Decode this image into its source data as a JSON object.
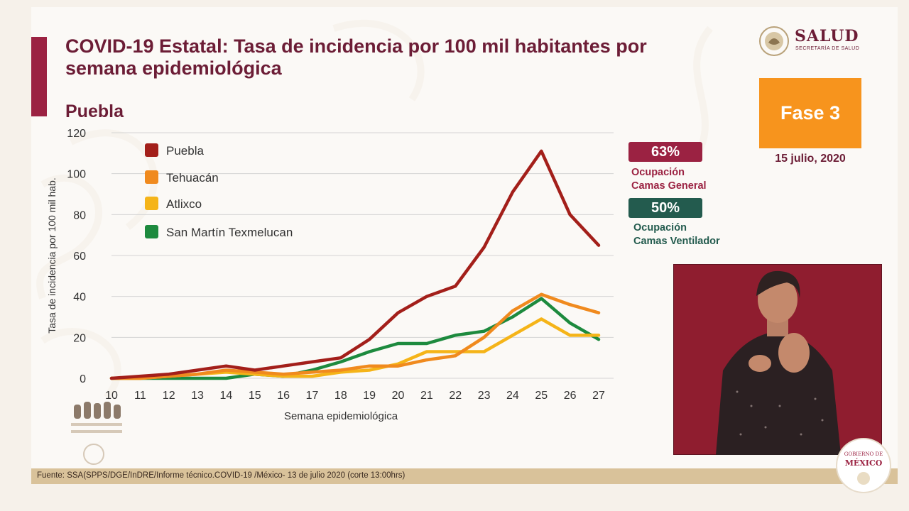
{
  "header": {
    "title": "COVID-19 Estatal: Tasa de incidencia por 100 mil habitantes por semana epidemiológica",
    "subtitle": "Puebla"
  },
  "logo": {
    "name": "SALUD",
    "sub": "SECRETARÍA DE SALUD",
    "icon": "mexico-coat-of-arms-icon"
  },
  "phase": {
    "label": "Fase 3",
    "date": "15 julio, 2020",
    "color": "#f7941d"
  },
  "occupancy": {
    "general": {
      "value": "63%",
      "label_line1": "Ocupación",
      "label_line2": "Camas General",
      "color": "#9b2242"
    },
    "ventilator": {
      "value": "50%",
      "label_line1": "Ocupación",
      "label_line2": "Camas Ventilador",
      "color": "#235b4e"
    }
  },
  "footer": {
    "source": "Fuente: SSA(SPPS/DGE/InDRE/Informe técnico.COVID-19 /México- 13 de julio 2020 (corte 13:00hrs)"
  },
  "gob_logo": {
    "line1": "GOBIERNO DE",
    "line2": "MÉXICO"
  },
  "chart_data": {
    "type": "line",
    "title": "",
    "xlabel": "Semana epidemiológica",
    "ylabel": "Tasa de incidencia por 100 mil hab.",
    "x": [
      10,
      11,
      12,
      13,
      14,
      15,
      16,
      17,
      18,
      19,
      20,
      21,
      22,
      23,
      24,
      25,
      26,
      27
    ],
    "ylim": [
      0,
      120
    ],
    "yticks": [
      0,
      20,
      40,
      60,
      80,
      100,
      120
    ],
    "grid": true,
    "legend_position": "top-left",
    "series": [
      {
        "name": "Puebla",
        "color": "#a31f1a",
        "values": [
          0,
          1,
          2,
          4,
          6,
          4,
          6,
          8,
          10,
          19,
          32,
          40,
          45,
          64,
          91,
          111,
          80,
          65
        ]
      },
      {
        "name": "Tehuacán",
        "color": "#f08a1e",
        "values": [
          0,
          0,
          1,
          2,
          4,
          3,
          2,
          3,
          4,
          6,
          6,
          9,
          11,
          20,
          33,
          41,
          36,
          32
        ]
      },
      {
        "name": "Atlixco",
        "color": "#f5b418",
        "values": [
          0,
          0,
          1,
          2,
          3,
          2,
          1,
          1,
          3,
          4,
          7,
          13,
          13,
          13,
          21,
          29,
          21,
          21
        ]
      },
      {
        "name": "San Martín Texmelucan",
        "color": "#1d8a3e",
        "values": [
          0,
          0,
          0,
          0,
          0,
          2,
          1,
          4,
          8,
          13,
          17,
          17,
          21,
          23,
          30,
          39,
          27,
          19
        ]
      }
    ]
  }
}
